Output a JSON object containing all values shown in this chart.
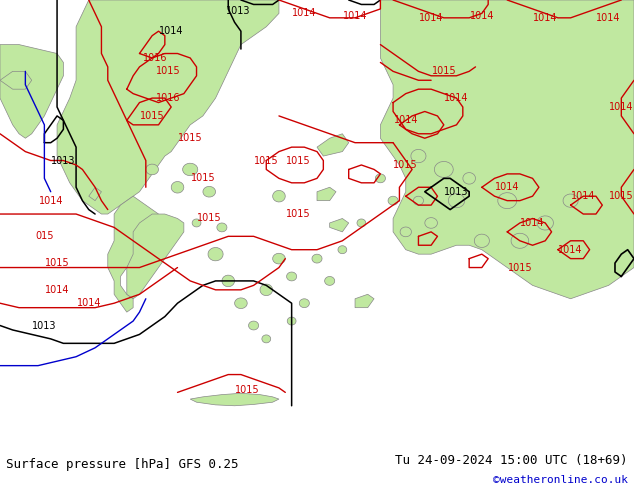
{
  "title_left": "Surface pressure [hPa] GFS 0.25",
  "title_right": "Tu 24-09-2024 15:00 UTC (18+69)",
  "credit": "©weatheronline.co.uk",
  "sea_color": "#d8dfe8",
  "land_color": "#c0e8a0",
  "figsize": [
    6.34,
    4.9
  ],
  "dpi": 100,
  "bottom_bar_color": "#b8b8b8",
  "bottom_text_color": "#000000",
  "credit_color": "#0000cc",
  "title_fontsize": 9,
  "credit_fontsize": 8,
  "coast_color": "#888888",
  "red": "#cc0000",
  "black": "#000000",
  "blue": "#0000cc"
}
